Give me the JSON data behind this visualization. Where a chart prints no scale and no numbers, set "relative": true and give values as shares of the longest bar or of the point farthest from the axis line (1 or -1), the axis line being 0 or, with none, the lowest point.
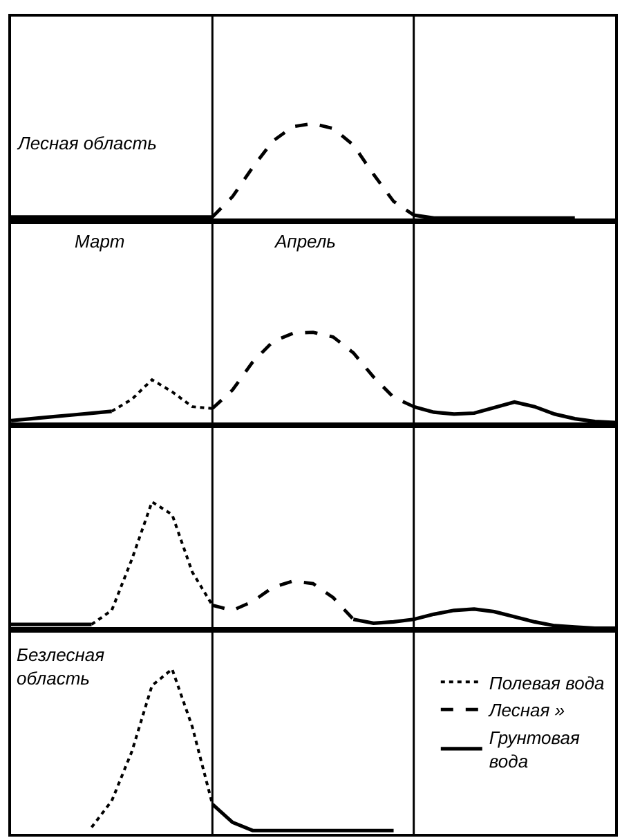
{
  "chart_data": [
    {
      "type": "line",
      "relative": true,
      "categories": [
        null,
        null,
        null,
        null,
        null,
        null,
        null,
        null,
        null,
        null,
        null,
        null,
        null,
        null,
        null,
        null,
        null,
        null,
        null,
        null,
        null,
        null,
        null,
        null,
        null,
        null,
        null,
        null,
        null,
        null,
        null
      ],
      "annotations": [
        "Лесная область"
      ],
      "series": [
        {
          "color": "#000000",
          "line_style": "solid",
          "values": [
            0.04,
            0.04,
            0.04,
            0.04,
            0.04,
            0.04,
            0.04,
            0.04,
            0.04,
            0.04,
            0.04,
            null,
            null,
            null,
            null,
            null,
            null,
            null,
            null,
            null,
            null,
            null,
            null,
            null,
            null,
            null,
            null,
            null,
            null,
            null,
            null
          ]
        },
        {
          "color": "#000000",
          "line_style": "dashed",
          "values": [
            null,
            null,
            null,
            null,
            null,
            null,
            null,
            null,
            null,
            null,
            0.04,
            0.25,
            0.55,
            0.82,
            0.97,
            1.0,
            0.95,
            0.78,
            0.48,
            0.2,
            0.06,
            null,
            null,
            null,
            null,
            null,
            null,
            null,
            null,
            null,
            null
          ]
        },
        {
          "color": "#000000",
          "line_style": "solid",
          "values": [
            null,
            null,
            null,
            null,
            null,
            null,
            null,
            null,
            null,
            null,
            null,
            null,
            null,
            null,
            null,
            null,
            null,
            null,
            null,
            null,
            0.06,
            0.03,
            0.03,
            0.03,
            0.03,
            0.03,
            0.03,
            0.03,
            0.03,
            null,
            null
          ]
        }
      ]
    },
    {
      "type": "line",
      "relative": true,
      "categories": [
        null,
        null,
        null,
        null,
        null,
        null,
        null,
        null,
        null,
        null,
        null,
        null,
        null,
        null,
        null,
        null,
        null,
        null,
        null,
        null,
        null,
        null,
        null,
        null,
        null,
        null,
        null,
        null,
        null,
        null,
        null
      ],
      "annotations": [
        "Март",
        "Апрель"
      ],
      "series": [
        {
          "color": "#000000",
          "line_style": "solid",
          "values": [
            0.05,
            0.07,
            0.09,
            0.11,
            0.13,
            0.15,
            null,
            null,
            null,
            null,
            null,
            null,
            null,
            null,
            null,
            null,
            null,
            null,
            null,
            null,
            null,
            null,
            null,
            null,
            null,
            null,
            null,
            null,
            null,
            null,
            null
          ]
        },
        {
          "color": "#000000",
          "line_style": "dotted",
          "values": [
            null,
            null,
            null,
            null,
            null,
            0.15,
            0.28,
            0.49,
            0.36,
            0.2,
            0.18,
            null,
            null,
            null,
            null,
            null,
            null,
            null,
            null,
            null,
            null,
            null,
            null,
            null,
            null,
            null,
            null,
            null,
            null,
            null,
            null
          ]
        },
        {
          "color": "#000000",
          "line_style": "dashed",
          "values": [
            null,
            null,
            null,
            null,
            null,
            null,
            null,
            null,
            null,
            null,
            0.18,
            0.38,
            0.68,
            0.9,
            0.99,
            1.0,
            0.95,
            0.78,
            0.52,
            0.3,
            0.2,
            null,
            null,
            null,
            null,
            null,
            null,
            null,
            null,
            null,
            null
          ]
        },
        {
          "color": "#000000",
          "line_style": "solid",
          "values": [
            null,
            null,
            null,
            null,
            null,
            null,
            null,
            null,
            null,
            null,
            null,
            null,
            null,
            null,
            null,
            null,
            null,
            null,
            null,
            null,
            0.2,
            0.14,
            0.12,
            0.13,
            0.19,
            0.25,
            0.2,
            0.12,
            0.07,
            0.04,
            0.03
          ]
        }
      ]
    },
    {
      "type": "line",
      "relative": true,
      "categories": [
        null,
        null,
        null,
        null,
        null,
        null,
        null,
        null,
        null,
        null,
        null,
        null,
        null,
        null,
        null,
        null,
        null,
        null,
        null,
        null,
        null,
        null,
        null,
        null,
        null,
        null,
        null,
        null,
        null,
        null,
        null
      ],
      "series": [
        {
          "color": "#000000",
          "line_style": "solid",
          "values": [
            0.04,
            0.04,
            0.04,
            0.04,
            0.04,
            null,
            null,
            null,
            null,
            null,
            null,
            null,
            null,
            null,
            null,
            null,
            null,
            null,
            null,
            null,
            null,
            null,
            null,
            null,
            null,
            null,
            null,
            null,
            null,
            null,
            null
          ]
        },
        {
          "color": "#000000",
          "line_style": "dotted",
          "values": [
            null,
            null,
            null,
            null,
            0.04,
            0.15,
            0.55,
            1.0,
            0.9,
            0.45,
            0.19,
            null,
            null,
            null,
            null,
            null,
            null,
            null,
            null,
            null,
            null,
            null,
            null,
            null,
            null,
            null,
            null,
            null,
            null,
            null,
            null
          ]
        },
        {
          "color": "#000000",
          "line_style": "dashed",
          "values": [
            null,
            null,
            null,
            null,
            null,
            null,
            null,
            null,
            null,
            null,
            0.19,
            0.15,
            0.22,
            0.33,
            0.38,
            0.36,
            0.25,
            0.08,
            null,
            null,
            null,
            null,
            null,
            null,
            null,
            null,
            null,
            null,
            null,
            null,
            null
          ]
        },
        {
          "color": "#000000",
          "line_style": "solid",
          "values": [
            null,
            null,
            null,
            null,
            null,
            null,
            null,
            null,
            null,
            null,
            null,
            null,
            null,
            null,
            null,
            null,
            null,
            0.08,
            0.05,
            0.06,
            0.08,
            0.12,
            0.15,
            0.16,
            0.14,
            0.1,
            0.06,
            0.03,
            0.02,
            0.01,
            0.01
          ]
        }
      ]
    },
    {
      "type": "line",
      "relative": true,
      "categories": [
        null,
        null,
        null,
        null,
        null,
        null,
        null,
        null,
        null,
        null,
        null,
        null,
        null,
        null,
        null,
        null,
        null,
        null,
        null,
        null,
        null,
        null,
        null,
        null,
        null,
        null,
        null,
        null,
        null,
        null,
        null
      ],
      "legend": "right",
      "annotations": [
        "Безлесная\nобласть"
      ],
      "series": [
        {
          "name": "Полевая вода",
          "color": "#000000",
          "line_style": "dotted",
          "values": [
            null,
            null,
            null,
            null,
            0.04,
            0.2,
            0.5,
            0.9,
            1.0,
            0.65,
            0.18,
            null,
            null,
            null,
            null,
            null,
            null,
            null,
            null,
            null,
            null,
            null,
            null,
            null,
            null,
            null,
            null,
            null,
            null,
            null,
            null
          ]
        },
        {
          "name": "Лесная »",
          "color": "#000000",
          "line_style": "dashed",
          "values": [
            null,
            null,
            null,
            null,
            null,
            null,
            null,
            null,
            null,
            null,
            null,
            null,
            null,
            null,
            null,
            null,
            null,
            null,
            null,
            null,
            null,
            null,
            null,
            null,
            null,
            null,
            null,
            null,
            null,
            null,
            null
          ]
        },
        {
          "name": "Грунтовая вода",
          "color": "#000000",
          "line_style": "solid",
          "values": [
            null,
            null,
            null,
            null,
            null,
            null,
            null,
            null,
            null,
            null,
            0.18,
            0.07,
            0.02,
            0.02,
            0.02,
            0.02,
            0.02,
            0.02,
            0.02,
            0.02,
            null,
            null,
            null,
            null,
            null,
            null,
            null,
            null,
            null,
            null,
            null
          ]
        }
      ]
    }
  ]
}
